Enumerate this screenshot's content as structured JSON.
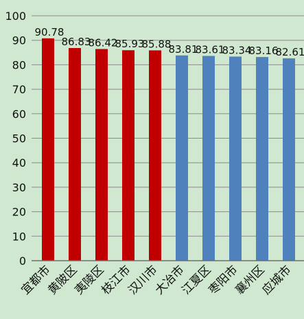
{
  "chart_data": {
    "type": "bar",
    "categories": [
      "宜都市",
      "黄陂区",
      "夷陵区",
      "枝江市",
      "汉川市",
      "大冶市",
      "江夏区",
      "枣阳市",
      "襄州区",
      "应城市"
    ],
    "values": [
      90.78,
      86.83,
      86.42,
      85.93,
      85.88,
      83.81,
      83.61,
      83.34,
      83.16,
      82.61
    ],
    "value_labels": [
      "90.78",
      "86.83",
      "86.42",
      "85.93",
      "85.88",
      "83.81",
      "83.61",
      "83.34",
      "83.16",
      "82.61"
    ],
    "bar_colors": [
      "#c00000",
      "#c00000",
      "#c00000",
      "#c00000",
      "#c00000",
      "#4f81bd",
      "#4f81bd",
      "#4f81bd",
      "#4f81bd",
      "#4f81bd"
    ],
    "y_ticks": [
      "0",
      "10",
      "20",
      "30",
      "40",
      "50",
      "60",
      "70",
      "80",
      "90",
      "100"
    ],
    "ylim": [
      0,
      100
    ],
    "grid": true,
    "title": "",
    "xlabel": "",
    "ylabel": ""
  },
  "colors": {
    "background": "#cfe8cf",
    "gridline": "#8c8c8c",
    "axis": "#6e6e6e",
    "highlight_bar": "#c00000",
    "normal_bar": "#4f81bd"
  }
}
